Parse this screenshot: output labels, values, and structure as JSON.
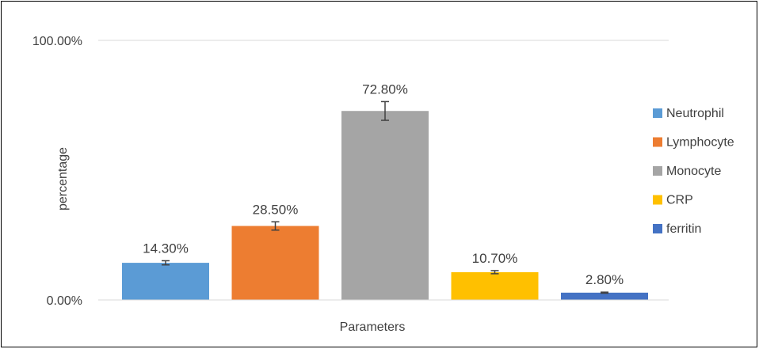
{
  "chart_data": {
    "type": "bar",
    "title": "",
    "xlabel": "Parameters",
    "ylabel": "percentage",
    "ylim": [
      0,
      100
    ],
    "yticks": [
      "0.00%",
      "100.00%"
    ],
    "ytick_values": [
      0,
      100
    ],
    "grid": true,
    "legend_position": "right",
    "categories": [
      "Neutrophil",
      "Lymphocyte",
      "Monocyte",
      "CRP",
      "ferritin"
    ],
    "values": [
      14.3,
      28.5,
      72.8,
      10.7,
      2.8
    ],
    "data_labels": [
      "14.30%",
      "28.50%",
      "72.80%",
      "10.70%",
      "2.80%"
    ],
    "error": [
      0.8,
      1.6,
      3.6,
      0.6,
      0.2
    ],
    "colors": [
      "#5b9bd5",
      "#ed7d31",
      "#a5a5a5",
      "#ffc000",
      "#4472c4"
    ]
  }
}
